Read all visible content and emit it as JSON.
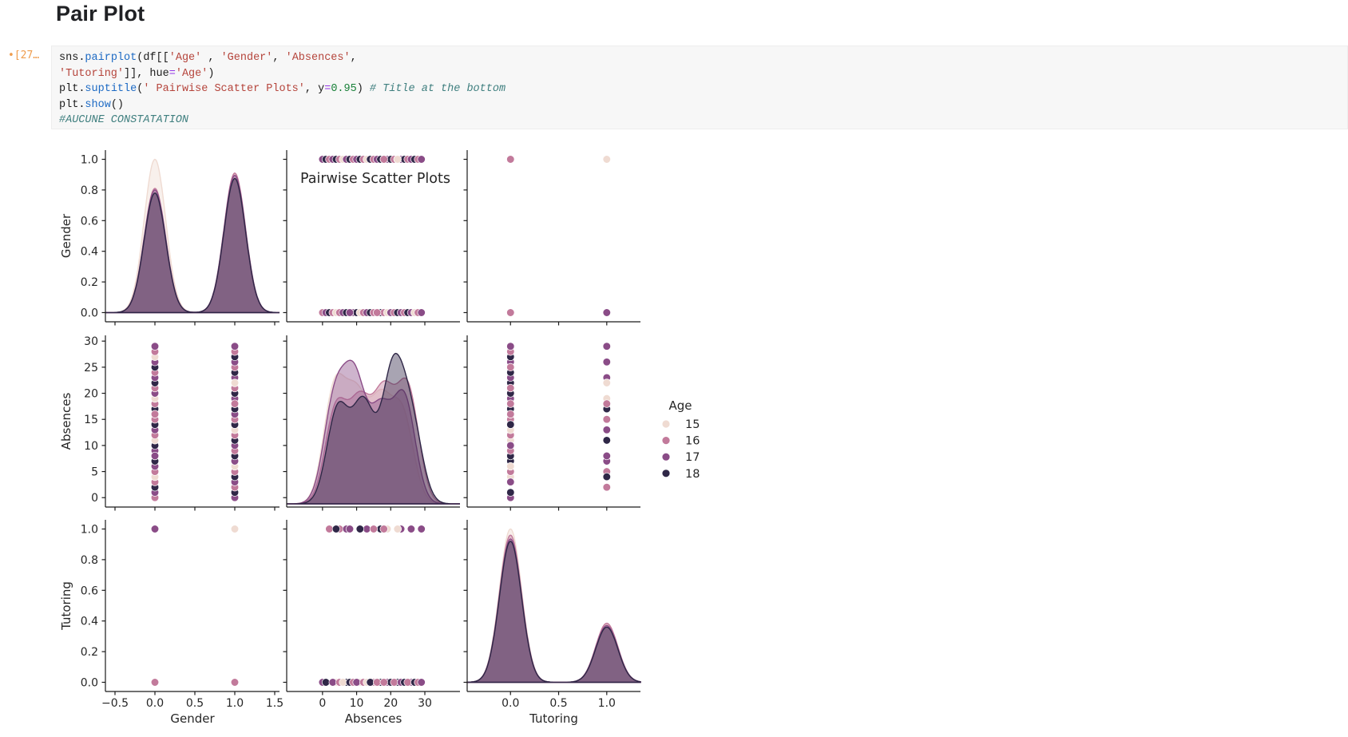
{
  "page": {
    "title": "Pair Plot"
  },
  "cell": {
    "execution_marker": "•[27…",
    "code_lines": [
      [
        [
          "sns",
          "n"
        ],
        [
          ".",
          "n"
        ],
        [
          "pairplot",
          "f"
        ],
        [
          "(df[[",
          "n"
        ],
        [
          "'Age'",
          "s"
        ],
        [
          " , ",
          "n"
        ],
        [
          "'Gender'",
          "s"
        ],
        [
          ", ",
          "n"
        ],
        [
          "'Absences'",
          "s"
        ],
        [
          ",",
          "n"
        ]
      ],
      [
        [
          "'Tutoring'",
          "s"
        ],
        [
          "]], hue",
          "n"
        ],
        [
          "=",
          "o"
        ],
        [
          "'Age'",
          "s"
        ],
        [
          ")",
          "n"
        ]
      ],
      [
        [
          "plt",
          "n"
        ],
        [
          ".",
          "n"
        ],
        [
          "suptitle",
          "f"
        ],
        [
          "(",
          "n"
        ],
        [
          "' Pairwise Scatter Plots'",
          "s"
        ],
        [
          ", y",
          "n"
        ],
        [
          "=",
          "o"
        ],
        [
          "0.95",
          "m"
        ],
        [
          ") ",
          "n"
        ],
        [
          "# Title at the bottom",
          "c"
        ]
      ],
      [
        [
          "plt",
          "n"
        ],
        [
          ".",
          "n"
        ],
        [
          "show",
          "f"
        ],
        [
          "()",
          "n"
        ]
      ],
      [
        [
          "#AUCUNE CONSTATATION",
          "c"
        ]
      ]
    ]
  },
  "chart_data": {
    "type": "pairplot",
    "suptitle": "Pairwise Scatter Plots",
    "variables": [
      "Gender",
      "Absences",
      "Tutoring"
    ],
    "hue": {
      "title": "Age",
      "levels": [
        "15",
        "16",
        "17",
        "18"
      ],
      "colors": {
        "15": "#efdbd2",
        "16": "#c27a9b",
        "17": "#8a4c87",
        "18": "#2f2747"
      }
    },
    "legend": {
      "title": "Age",
      "entries": [
        "15",
        "16",
        "17",
        "18"
      ]
    },
    "axes": {
      "x": [
        {
          "var": "Gender",
          "range": [
            -0.62,
            1.56
          ],
          "ticks": [
            -0.5,
            0,
            0.5,
            1,
            1.5
          ],
          "labels": [
            "−0.5",
            "0.0",
            "0.5",
            "1.0",
            "1.5"
          ]
        },
        {
          "var": "Absences",
          "range": [
            -10.5,
            40.3
          ],
          "ticks": [
            0,
            10,
            20,
            30
          ],
          "labels": [
            "0",
            "10",
            "20",
            "30"
          ]
        },
        {
          "var": "Tutoring",
          "range": [
            -0.45,
            1.35
          ],
          "ticks": [
            0,
            0.5,
            1
          ],
          "labels": [
            "0.0",
            "0.5",
            "1.0"
          ]
        }
      ],
      "y": [
        {
          "var": "Gender",
          "range": [
            -0.06,
            1.06
          ],
          "ticks": [
            0,
            0.2,
            0.4,
            0.6,
            0.8,
            1
          ],
          "labels": [
            "0.0",
            "0.2",
            "0.4",
            "0.6",
            "0.8",
            "1.0"
          ]
        },
        {
          "var": "Absences",
          "range": [
            -1.8,
            31.1
          ],
          "ticks": [
            0,
            5,
            10,
            15,
            20,
            25,
            30
          ],
          "labels": [
            "0",
            "5",
            "10",
            "15",
            "20",
            "25",
            "30"
          ]
        },
        {
          "var": "Tutoring",
          "range": [
            -0.06,
            1.06
          ],
          "ticks": [
            0,
            0.2,
            0.4,
            0.6,
            0.8,
            1
          ],
          "labels": [
            "0.0",
            "0.2",
            "0.4",
            "0.6",
            "0.8",
            "1.0"
          ]
        }
      ]
    },
    "kde": {
      "Gender": {
        "sigma": 0.135,
        "levels": {
          "15": [
            [
              0,
              1.0
            ],
            [
              1,
              0.9
            ]
          ],
          "16": [
            [
              0,
              0.81
            ],
            [
              1,
              0.91
            ]
          ],
          "17": [
            [
              0,
              0.8
            ],
            [
              1,
              0.895
            ]
          ],
          "18": [
            [
              0,
              0.78
            ],
            [
              1,
              0.875
            ]
          ]
        }
      },
      "Absences": {
        "sigma": 3.2,
        "levels": {
          "15": [
            [
              3.5,
              0.72
            ],
            [
              10,
              0.62
            ],
            [
              17,
              0.6
            ],
            [
              23.5,
              0.55
            ]
          ],
          "16": [
            [
              4,
              0.6
            ],
            [
              11,
              0.6
            ],
            [
              18,
              0.66
            ],
            [
              25,
              0.72
            ]
          ],
          "17": [
            [
              3.5,
              0.64
            ],
            [
              9.5,
              0.74
            ],
            [
              17,
              0.56
            ],
            [
              24,
              0.66
            ]
          ],
          "18": [
            [
              4.5,
              0.6
            ],
            [
              12,
              0.62
            ],
            [
              20.5,
              0.8
            ],
            [
              26,
              0.5
            ]
          ]
        }
      },
      "Tutoring": {
        "sigma": 0.115,
        "levels": {
          "15": [
            [
              0,
              1.0
            ],
            [
              1,
              0.375
            ]
          ],
          "16": [
            [
              0,
              0.96
            ],
            [
              1,
              0.385
            ]
          ],
          "17": [
            [
              0,
              0.935
            ],
            [
              1,
              0.37
            ]
          ],
          "18": [
            [
              0,
              0.92
            ],
            [
              1,
              0.36
            ]
          ]
        }
      }
    },
    "records": [
      [
        0,
        0,
        0,
        16
      ],
      [
        0,
        1,
        0,
        17
      ],
      [
        0,
        2,
        1,
        18
      ],
      [
        0,
        3,
        0,
        16
      ],
      [
        0,
        4,
        0,
        15
      ],
      [
        0,
        5,
        1,
        16
      ],
      [
        0,
        6,
        0,
        17
      ],
      [
        0,
        7,
        0,
        18
      ],
      [
        0,
        8,
        1,
        16
      ],
      [
        0,
        9,
        0,
        17
      ],
      [
        0,
        10,
        0,
        18
      ],
      [
        0,
        11,
        0,
        15
      ],
      [
        0,
        12,
        0,
        16
      ],
      [
        0,
        13,
        1,
        17
      ],
      [
        0,
        14,
        0,
        18
      ],
      [
        0,
        15,
        0,
        16
      ],
      [
        0,
        16,
        0,
        17
      ],
      [
        0,
        17,
        1,
        18
      ],
      [
        0,
        18,
        0,
        16
      ],
      [
        0,
        19,
        1,
        15
      ],
      [
        0,
        20,
        0,
        17
      ],
      [
        0,
        21,
        0,
        16
      ],
      [
        0,
        22,
        0,
        18
      ],
      [
        0,
        23,
        1,
        17
      ],
      [
        0,
        24,
        0,
        16
      ],
      [
        0,
        25,
        0,
        18
      ],
      [
        0,
        26,
        0,
        17
      ],
      [
        0,
        27,
        0,
        15
      ],
      [
        0,
        28,
        0,
        16
      ],
      [
        0,
        29,
        1,
        17
      ],
      [
        1,
        0,
        0,
        17
      ],
      [
        1,
        1,
        0,
        18
      ],
      [
        1,
        2,
        1,
        16
      ],
      [
        1,
        3,
        0,
        17
      ],
      [
        1,
        4,
        1,
        18
      ],
      [
        1,
        5,
        0,
        16
      ],
      [
        1,
        6,
        0,
        15
      ],
      [
        1,
        7,
        1,
        17
      ],
      [
        1,
        8,
        0,
        18
      ],
      [
        1,
        9,
        0,
        16
      ],
      [
        1,
        10,
        0,
        17
      ],
      [
        1,
        11,
        1,
        18
      ],
      [
        1,
        12,
        0,
        16
      ],
      [
        1,
        13,
        0,
        15
      ],
      [
        1,
        14,
        0,
        18
      ],
      [
        1,
        15,
        1,
        16
      ],
      [
        1,
        16,
        0,
        17
      ],
      [
        1,
        17,
        0,
        18
      ],
      [
        1,
        18,
        1,
        16
      ],
      [
        1,
        19,
        0,
        17
      ],
      [
        1,
        20,
        0,
        18
      ],
      [
        1,
        21,
        0,
        16
      ],
      [
        1,
        22,
        1,
        15
      ],
      [
        1,
        23,
        0,
        17
      ],
      [
        1,
        24,
        0,
        18
      ],
      [
        1,
        25,
        0,
        16
      ],
      [
        1,
        26,
        1,
        17
      ],
      [
        1,
        27,
        0,
        18
      ],
      [
        1,
        28,
        0,
        16
      ],
      [
        1,
        29,
        0,
        17
      ],
      [
        0,
        16,
        0,
        16
      ],
      [
        1,
        18,
        0,
        16
      ],
      [
        0,
        8,
        1,
        17
      ],
      [
        1,
        22,
        1,
        15
      ]
    ]
  }
}
